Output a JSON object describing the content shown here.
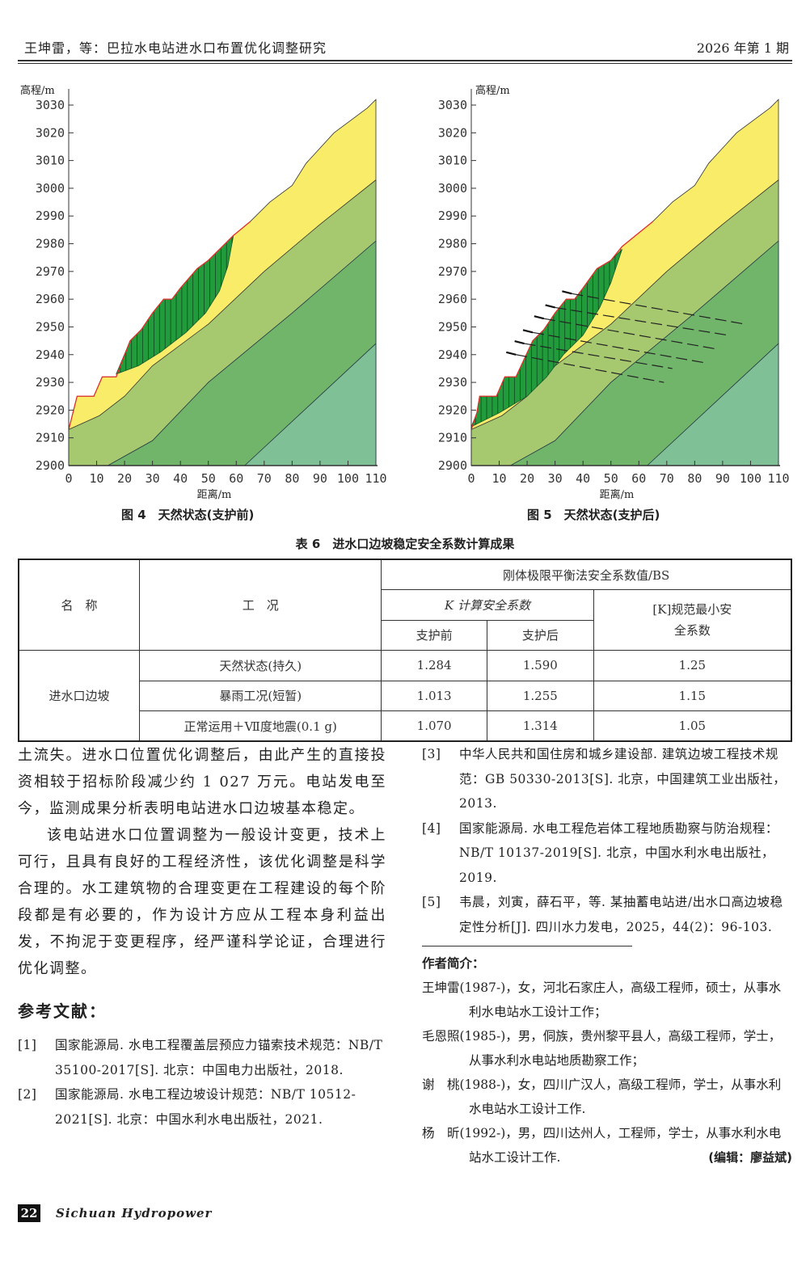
{
  "header": {
    "left": "王坤雷，等：巴拉水电站进水口布置优化调整研究",
    "right": "2026 年第 1 期"
  },
  "chart_data": [
    {
      "type": "area",
      "title": "图 4　天然状态(支护前)",
      "ylabel": "高程/m",
      "xlabel": "距离/m",
      "xlim": [
        0,
        110
      ],
      "ylim": [
        2900,
        3030
      ],
      "xticks": [
        "0",
        "10",
        "20",
        "30",
        "40",
        "50",
        "60",
        "70",
        "80",
        "90",
        "100",
        "110"
      ],
      "yticks": [
        "2900",
        "2910",
        "2920",
        "2930",
        "2940",
        "2950",
        "2960",
        "2970",
        "2980",
        "2990",
        "3000",
        "3010",
        "3020",
        "3030"
      ],
      "ground": [
        [
          0,
          2913
        ],
        [
          3,
          2925
        ],
        [
          9,
          2925
        ],
        [
          12,
          2932
        ],
        [
          17,
          2932
        ],
        [
          22,
          2945
        ],
        [
          26,
          2949
        ],
        [
          30,
          2955
        ],
        [
          34,
          2960
        ],
        [
          37,
          2960
        ],
        [
          40,
          2964
        ],
        [
          46,
          2971
        ],
        [
          50,
          2974
        ],
        [
          59,
          2983
        ],
        [
          65,
          2988
        ],
        [
          72,
          2995
        ],
        [
          80,
          3001
        ],
        [
          85,
          3009
        ],
        [
          95,
          3020
        ],
        [
          107,
          3029
        ],
        [
          110,
          3032
        ]
      ],
      "layer_boundaries": [
        [
          [
            0,
            2913
          ],
          [
            11,
            2918
          ],
          [
            20,
            2925
          ],
          [
            30,
            2936
          ],
          [
            50,
            2951
          ],
          [
            70,
            2970
          ],
          [
            90,
            2987
          ],
          [
            110,
            3003
          ]
        ],
        [
          [
            14,
            2900
          ],
          [
            30,
            2909
          ],
          [
            50,
            2930
          ],
          [
            80,
            2955
          ],
          [
            110,
            2981
          ]
        ],
        [
          [
            63,
            2900
          ],
          [
            110,
            2944
          ]
        ]
      ],
      "slip_surface": [
        [
          17,
          2933
        ],
        [
          25,
          2936
        ],
        [
          33,
          2941
        ],
        [
          42,
          2948
        ],
        [
          49,
          2955
        ],
        [
          54,
          2963
        ],
        [
          57,
          2972
        ],
        [
          59,
          2983
        ]
      ],
      "anchors": [],
      "colors": {
        "layer1": "#f9ec68",
        "layer2": "#a6c970",
        "layer3": "#71b56b",
        "layer4": "#7fc096",
        "slide": "#229b3c",
        "surface": "#e0302a"
      }
    },
    {
      "type": "area",
      "title": "图 5　天然状态(支护后)",
      "ylabel": "高程/m",
      "xlabel": "距离/m",
      "xlim": [
        0,
        110
      ],
      "ylim": [
        2900,
        3030
      ],
      "xticks": [
        "0",
        "10",
        "20",
        "30",
        "40",
        "50",
        "60",
        "70",
        "80",
        "90",
        "100",
        "110"
      ],
      "yticks": [
        "2900",
        "2910",
        "2920",
        "2930",
        "2940",
        "2950",
        "2960",
        "2970",
        "2980",
        "2990",
        "3000",
        "3010",
        "3020",
        "3030"
      ],
      "ground": [
        [
          0,
          2913
        ],
        [
          2,
          2919
        ],
        [
          3,
          2925
        ],
        [
          9,
          2925
        ],
        [
          12,
          2932
        ],
        [
          16,
          2932
        ],
        [
          22,
          2945
        ],
        [
          26,
          2949
        ],
        [
          30,
          2955
        ],
        [
          34,
          2960
        ],
        [
          37,
          2960
        ],
        [
          40,
          2964
        ],
        [
          45,
          2971
        ],
        [
          50,
          2974
        ],
        [
          54,
          2979
        ],
        [
          65,
          2988
        ],
        [
          72,
          2995
        ],
        [
          80,
          3001
        ],
        [
          85,
          3009
        ],
        [
          95,
          3020
        ],
        [
          107,
          3029
        ],
        [
          110,
          3032
        ]
      ],
      "layer_boundaries": [
        [
          [
            0,
            2913
          ],
          [
            11,
            2918
          ],
          [
            20,
            2925
          ],
          [
            30,
            2936
          ],
          [
            50,
            2951
          ],
          [
            70,
            2970
          ],
          [
            90,
            2987
          ],
          [
            110,
            3003
          ]
        ],
        [
          [
            14,
            2900
          ],
          [
            30,
            2909
          ],
          [
            50,
            2930
          ],
          [
            80,
            2955
          ],
          [
            110,
            2981
          ]
        ],
        [
          [
            63,
            2900
          ],
          [
            110,
            2944
          ]
        ]
      ],
      "slip_surface": [
        [
          0,
          2914
        ],
        [
          10,
          2919
        ],
        [
          20,
          2925
        ],
        [
          27,
          2932
        ],
        [
          33,
          2940
        ],
        [
          40,
          2947
        ],
        [
          46,
          2957
        ],
        [
          50,
          2966
        ],
        [
          54,
          2978
        ]
      ],
      "anchors": [
        [
          [
            36,
            2962
          ],
          [
            98,
            2951
          ]
        ],
        [
          [
            30,
            2957
          ],
          [
            92,
            2947
          ]
        ],
        [
          [
            26,
            2953
          ],
          [
            88,
            2942
          ]
        ],
        [
          [
            22,
            2948
          ],
          [
            84,
            2937
          ]
        ],
        [
          [
            19,
            2944
          ],
          [
            72,
            2935
          ]
        ],
        [
          [
            16,
            2940
          ],
          [
            69,
            2930
          ]
        ]
      ],
      "colors": {
        "layer1": "#f9ec68",
        "layer2": "#a6c970",
        "layer3": "#71b56b",
        "layer4": "#7fc096",
        "slide": "#229b3c",
        "surface": "#e0302a"
      }
    }
  ],
  "table": {
    "title": "表 6　进水口边坡稳定安全系数计算成果",
    "h_name": "名　称",
    "h_cond": "工　况",
    "h_group": "刚体极限平衡法安全系数值/BS",
    "h_k": "K 计算安全系数",
    "h_spec": "[K]规范最小安全系数",
    "h_before": "支护前",
    "h_after": "支护后",
    "row_group": "进水口边坡",
    "rows": [
      {
        "cond": "天然状态(持久)",
        "before": "1.284",
        "after": "1.590",
        "spec": "1.25"
      },
      {
        "cond": "暴雨工况(短暂)",
        "before": "1.013",
        "after": "1.255",
        "spec": "1.15"
      },
      {
        "cond": "正常运用＋Ⅶ度地震(0.1 g)",
        "before": "1.070",
        "after": "1.314",
        "spec": "1.05"
      }
    ]
  },
  "body": {
    "p1": "土流失。进水口位置优化调整后，由此产生的直接投资相较于招标阶段减少约 1 027 万元。电站发电至今，监测成果分析表明电站进水口边坡基本稳定。",
    "p2": "该电站进水口位置调整为一般设计变更，技术上可行，且具有良好的工程经济性，该优化调整是科学合理的。水工建筑物的合理变更在工程建设的每个阶段都是有必要的，作为设计方应从工程本身利益出发，不拘泥于变更程序，经严谨科学论证，合理进行优化调整。"
  },
  "refs_title": "参考文献：",
  "refs": [
    {
      "n": "[1]",
      "t": "国家能源局. 水电工程覆盖层预应力锚索技术规范：NB/T 35100-2017[S]. 北京：中国电力出版社，2018."
    },
    {
      "n": "[2]",
      "t": "国家能源局. 水电工程边坡设计规范：NB/T 10512-2021[S]. 北京：中国水利水电出版社，2021."
    },
    {
      "n": "[3]",
      "t": "中华人民共和国住房和城乡建设部. 建筑边坡工程技术规范：GB 50330-2013[S]. 北京，中国建筑工业出版社，2013."
    },
    {
      "n": "[4]",
      "t": "国家能源局. 水电工程危岩体工程地质勘察与防治规程：NB/T 10137-2019[S]. 北京，中国水利水电出版社，2019."
    },
    {
      "n": "[5]",
      "t": "韦晨，刘寅，薛石平，等. 某抽蓄电站进/出水口高边坡稳定性分析[J]. 四川水力发电，2025，44(2)：96-103."
    }
  ],
  "bio_title": "作者简介：",
  "bios": [
    "王坤雷(1987-)，女，河北石家庄人，高级工程师，硕士，从事水利水电站水工设计工作；",
    "毛恩照(1985-)，男，侗族，贵州黎平县人，高级工程师，学士，从事水利水电站地质勘察工作；",
    "谢　桃(1988-)，女，四川广汉人，高级工程师，学士，从事水利水电站水工设计工作.",
    "杨　昕(1992-)，男，四川达州人，工程师，学士，从事水利水电站水工设计工作."
  ],
  "editor": "(编辑：廖益斌)",
  "footer": {
    "page": "22",
    "journal": "Sichuan Hydropower"
  }
}
